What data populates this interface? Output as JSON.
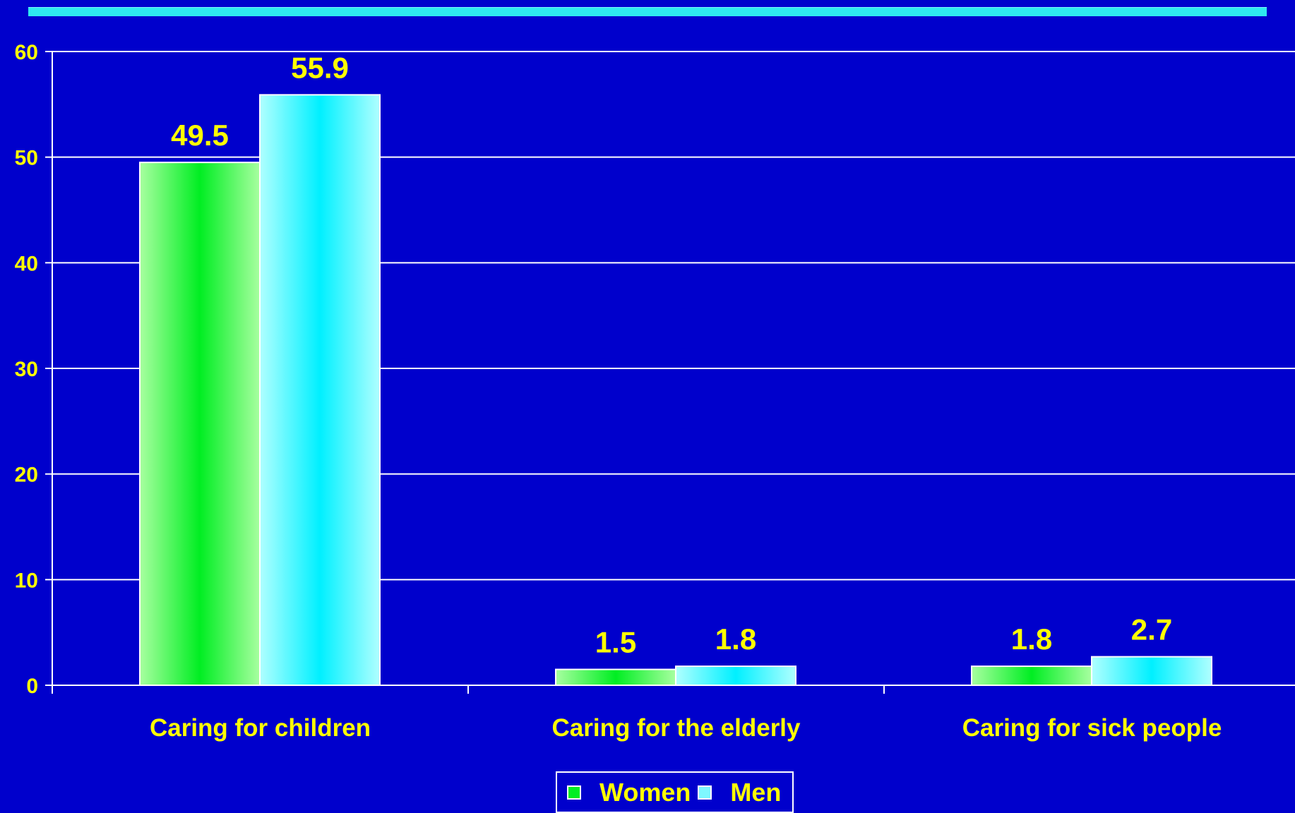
{
  "chart_data": {
    "type": "bar",
    "categories": [
      "Caring for children",
      "Caring for the elderly",
      "Caring for sick people"
    ],
    "series": [
      {
        "name": "Women",
        "values": [
          49.5,
          1.5,
          1.8
        ]
      },
      {
        "name": "Men",
        "values": [
          55.9,
          1.8,
          2.7
        ]
      }
    ],
    "data_labels": [
      [
        "49.5",
        "1.5",
        "1.8"
      ],
      [
        "55.9",
        "1.8",
        "2.7"
      ]
    ],
    "ylim": [
      0,
      60
    ],
    "yticks": [
      0,
      10,
      20,
      30,
      40,
      50,
      60
    ],
    "grid": true,
    "legend_position": "bottom",
    "title": "",
    "xlabel": "",
    "ylabel": ""
  },
  "colors": {
    "background": "#0000CC",
    "women": "#00EE22",
    "women_light": "#A8FFA0",
    "men": "#00F0FF",
    "men_light": "#B0FFFF",
    "text": "#FFFF00",
    "grid": "#FFFFFF",
    "accent_rule": "#2EE8F0"
  },
  "legend": {
    "items": [
      {
        "label": "Women",
        "color": "#00EE22"
      },
      {
        "label": "Men",
        "color": "#7FF8FF"
      }
    ]
  }
}
